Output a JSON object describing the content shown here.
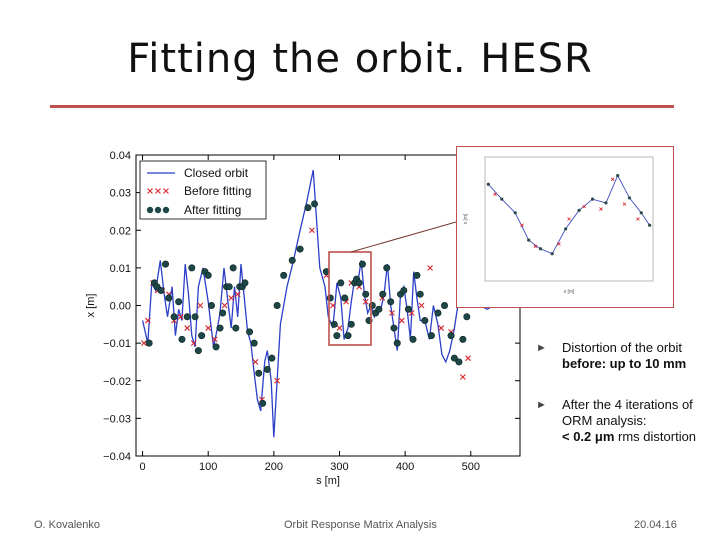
{
  "slide": {
    "title": "Fitting the orbit. HESR",
    "bullets": [
      {
        "pre": "Distortion of the orbit",
        "bold": "before: up to 10 mm",
        "post": ""
      },
      {
        "pre": "After the 4 iterations of ORM analysis:",
        "bold": "< 0.2 μm",
        "post": " rms distortion"
      }
    ],
    "bullet_glyph": "►",
    "footer": {
      "author": "O. Kovalenko",
      "topic": "Orbit Response Matrix Analysis",
      "date": "20.04.16"
    },
    "colors": {
      "accent_rule": "#c0504d",
      "highlight_box": "#c0504d",
      "closed_orbit": "#2b3fc9",
      "before_fitting": "#d6262b",
      "after_fitting": "#1e4646"
    }
  },
  "chart_data": [
    {
      "type": "line",
      "xlabel": "s [m]",
      "ylabel": "x [m]",
      "xlim": [
        -10,
        575
      ],
      "ylim": [
        -0.04,
        0.04
      ],
      "xticks": [
        0,
        100,
        200,
        300,
        400,
        500
      ],
      "yticks": [
        0.04,
        0.03,
        0.02,
        0.01,
        0.0,
        -0.01,
        -0.02,
        -0.03,
        -0.04
      ],
      "ytick_labels": [
        "0.04",
        "0.03",
        "0.02",
        "0.01",
        "0.00",
        "−0.01",
        "−0.02",
        "−0.03",
        "−0.04"
      ],
      "legend_position": "top-left",
      "series": [
        {
          "name": "Closed orbit",
          "style": "line",
          "x": [
            0,
            8,
            14,
            20,
            27,
            33,
            38,
            45,
            50,
            55,
            60,
            65,
            70,
            75,
            80,
            85,
            92,
            100,
            108,
            114,
            118,
            124,
            130,
            135,
            140,
            145,
            150,
            155,
            160,
            165,
            170,
            175,
            180,
            186,
            190,
            196,
            200,
            210,
            220,
            230,
            240,
            250,
            260,
            270,
            278,
            283,
            290,
            296,
            302,
            307,
            313,
            318,
            323,
            328,
            333,
            338,
            343,
            348,
            353,
            358,
            363,
            368,
            373,
            378,
            383,
            388,
            393,
            398,
            403,
            408,
            413,
            418,
            423,
            430,
            437,
            443,
            450,
            456,
            462,
            468,
            475,
            482,
            490,
            497,
            505,
            515,
            525,
            535
          ],
          "y": [
            -0.004,
            -0.01,
            0.006,
            0.004,
            0.012,
            0.003,
            -0.003,
            0.005,
            -0.008,
            -0.001,
            -0.004,
            0.011,
            0.003,
            -0.008,
            -0.011,
            0.005,
            0.01,
            0.001,
            -0.011,
            -0.006,
            -0.002,
            0.01,
            0.001,
            -0.006,
            0.005,
            -0.003,
            0.011,
            0.002,
            -0.007,
            -0.01,
            -0.018,
            -0.025,
            -0.028,
            -0.015,
            -0.012,
            -0.02,
            -0.035,
            -0.005,
            0.005,
            0.012,
            0.02,
            0.0275,
            0.036,
            0.01,
            0.005,
            -0.003,
            -0.006,
            0.006,
            0.002,
            -0.009,
            -0.006,
            0.001,
            0.007,
            0.006,
            0.012,
            0.003,
            -0.002,
            0.0,
            -0.003,
            -0.001,
            -0.001,
            0.003,
            0.011,
            0.0,
            -0.006,
            -0.012,
            0.003,
            0.005,
            -0.001,
            -0.009,
            0.009,
            0.002,
            -0.004,
            -0.004,
            -0.009,
            0.0,
            -0.005,
            -0.013,
            -0.015,
            -0.012,
            -0.006,
            0.002,
            0.008,
            0.009,
            0.004,
            0.0,
            -0.001,
            0.0
          ]
        },
        {
          "name": "Before fitting",
          "style": "marker-x",
          "x": [
            2,
            8,
            16,
            23,
            30,
            40,
            48,
            58,
            68,
            78,
            88,
            100,
            110,
            125,
            135,
            145,
            152,
            172,
            182,
            205,
            258,
            280,
            290,
            300,
            310,
            318,
            330,
            340,
            365,
            380,
            395,
            410,
            425,
            438,
            455,
            470,
            488,
            496
          ],
          "y": [
            -0.01,
            -0.004,
            0.006,
            0.004,
            0.004,
            0.003,
            -0.004,
            -0.003,
            -0.006,
            -0.01,
            0.0,
            -0.006,
            -0.009,
            0.0,
            0.002,
            0.003,
            0.005,
            -0.015,
            -0.025,
            -0.02,
            0.02,
            0.008,
            0.0,
            -0.006,
            0.001,
            0.006,
            0.005,
            0.001,
            0.002,
            -0.002,
            -0.004,
            -0.002,
            0.0,
            0.01,
            -0.006,
            -0.007,
            -0.019,
            -0.014
          ]
        },
        {
          "name": "After fitting",
          "style": "marker-dot",
          "x": [
            10,
            18,
            22,
            28,
            35,
            40,
            48,
            55,
            60,
            68,
            75,
            80,
            85,
            90,
            95,
            100,
            105,
            112,
            118,
            122,
            128,
            132,
            138,
            142,
            148,
            152,
            156,
            163,
            170,
            177,
            183,
            190,
            197,
            205,
            215,
            228,
            240,
            252,
            262,
            280,
            286,
            292,
            296,
            302,
            308,
            313,
            318,
            323,
            326,
            330,
            335,
            340,
            345,
            350,
            355,
            360,
            366,
            372,
            378,
            383,
            388,
            393,
            398,
            405,
            412,
            418,
            423,
            430,
            440,
            450,
            460,
            470,
            475,
            482,
            488,
            494,
            500,
            506,
            512
          ],
          "y": [
            -0.01,
            0.006,
            0.005,
            0.004,
            0.011,
            0.002,
            -0.003,
            0.001,
            -0.009,
            -0.003,
            0.01,
            -0.003,
            -0.012,
            -0.008,
            0.009,
            0.008,
            0.0,
            -0.011,
            -0.006,
            -0.002,
            0.005,
            0.005,
            0.01,
            -0.006,
            0.005,
            0.005,
            0.006,
            -0.007,
            -0.01,
            -0.018,
            -0.026,
            -0.017,
            -0.014,
            0.0,
            0.008,
            0.012,
            0.015,
            0.026,
            0.027,
            0.009,
            0.002,
            -0.005,
            -0.008,
            0.006,
            0.002,
            -0.008,
            -0.005,
            0.006,
            0.007,
            0.006,
            0.011,
            0.003,
            -0.004,
            0.0,
            -0.002,
            -0.001,
            0.003,
            0.01,
            0.001,
            -0.006,
            -0.01,
            0.003,
            0.004,
            -0.001,
            -0.009,
            0.008,
            0.003,
            -0.004,
            -0.008,
            -0.002,
            0.0,
            -0.008,
            -0.014,
            -0.015,
            -0.009,
            -0.003,
            0.003,
            0.008,
            0.008
          ]
        }
      ]
    },
    {
      "type": "line",
      "xlabel": "s [m]",
      "ylabel": "x [m]",
      "xlim": [
        0,
        10
      ],
      "ylim": [
        0,
        1
      ],
      "series": [
        {
          "name": "",
          "style": "line-dots",
          "x": [
            0.2,
            1.0,
            1.8,
            2.6,
            3.3,
            4.0,
            4.8,
            5.6,
            6.4,
            7.2,
            7.9,
            8.6,
            9.3,
            9.8
          ],
          "y": [
            0.78,
            0.66,
            0.55,
            0.33,
            0.26,
            0.22,
            0.42,
            0.57,
            0.66,
            0.63,
            0.85,
            0.67,
            0.55,
            0.45
          ]
        },
        {
          "name": "",
          "style": "marker-x",
          "x": [
            0.6,
            2.2,
            3.0,
            4.4,
            5.0,
            5.9,
            6.9,
            7.6,
            8.3,
            9.1
          ],
          "y": [
            0.7,
            0.45,
            0.28,
            0.3,
            0.5,
            0.6,
            0.58,
            0.82,
            0.62,
            0.5
          ]
        }
      ]
    }
  ]
}
